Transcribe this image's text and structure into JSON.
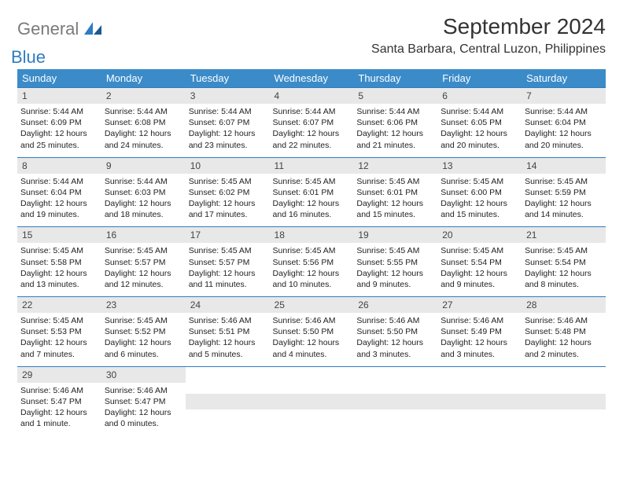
{
  "logo": {
    "text1": "General",
    "text2": "Blue"
  },
  "title": "September 2024",
  "location": "Santa Barbara, Central Luzon, Philippines",
  "colors": {
    "header_bg": "#3b8bc9",
    "header_text": "#ffffff",
    "daynum_bg": "#e8e8e8",
    "border": "#2e7cc2",
    "logo_gray": "#7a7a7a",
    "logo_blue": "#2e7cc2"
  },
  "weekdays": [
    "Sunday",
    "Monday",
    "Tuesday",
    "Wednesday",
    "Thursday",
    "Friday",
    "Saturday"
  ],
  "weeks": [
    [
      {
        "n": "1",
        "sr": "5:44 AM",
        "ss": "6:09 PM",
        "dl": "12 hours and 25 minutes."
      },
      {
        "n": "2",
        "sr": "5:44 AM",
        "ss": "6:08 PM",
        "dl": "12 hours and 24 minutes."
      },
      {
        "n": "3",
        "sr": "5:44 AM",
        "ss": "6:07 PM",
        "dl": "12 hours and 23 minutes."
      },
      {
        "n": "4",
        "sr": "5:44 AM",
        "ss": "6:07 PM",
        "dl": "12 hours and 22 minutes."
      },
      {
        "n": "5",
        "sr": "5:44 AM",
        "ss": "6:06 PM",
        "dl": "12 hours and 21 minutes."
      },
      {
        "n": "6",
        "sr": "5:44 AM",
        "ss": "6:05 PM",
        "dl": "12 hours and 20 minutes."
      },
      {
        "n": "7",
        "sr": "5:44 AM",
        "ss": "6:04 PM",
        "dl": "12 hours and 20 minutes."
      }
    ],
    [
      {
        "n": "8",
        "sr": "5:44 AM",
        "ss": "6:04 PM",
        "dl": "12 hours and 19 minutes."
      },
      {
        "n": "9",
        "sr": "5:44 AM",
        "ss": "6:03 PM",
        "dl": "12 hours and 18 minutes."
      },
      {
        "n": "10",
        "sr": "5:45 AM",
        "ss": "6:02 PM",
        "dl": "12 hours and 17 minutes."
      },
      {
        "n": "11",
        "sr": "5:45 AM",
        "ss": "6:01 PM",
        "dl": "12 hours and 16 minutes."
      },
      {
        "n": "12",
        "sr": "5:45 AM",
        "ss": "6:01 PM",
        "dl": "12 hours and 15 minutes."
      },
      {
        "n": "13",
        "sr": "5:45 AM",
        "ss": "6:00 PM",
        "dl": "12 hours and 15 minutes."
      },
      {
        "n": "14",
        "sr": "5:45 AM",
        "ss": "5:59 PM",
        "dl": "12 hours and 14 minutes."
      }
    ],
    [
      {
        "n": "15",
        "sr": "5:45 AM",
        "ss": "5:58 PM",
        "dl": "12 hours and 13 minutes."
      },
      {
        "n": "16",
        "sr": "5:45 AM",
        "ss": "5:57 PM",
        "dl": "12 hours and 12 minutes."
      },
      {
        "n": "17",
        "sr": "5:45 AM",
        "ss": "5:57 PM",
        "dl": "12 hours and 11 minutes."
      },
      {
        "n": "18",
        "sr": "5:45 AM",
        "ss": "5:56 PM",
        "dl": "12 hours and 10 minutes."
      },
      {
        "n": "19",
        "sr": "5:45 AM",
        "ss": "5:55 PM",
        "dl": "12 hours and 9 minutes."
      },
      {
        "n": "20",
        "sr": "5:45 AM",
        "ss": "5:54 PM",
        "dl": "12 hours and 9 minutes."
      },
      {
        "n": "21",
        "sr": "5:45 AM",
        "ss": "5:54 PM",
        "dl": "12 hours and 8 minutes."
      }
    ],
    [
      {
        "n": "22",
        "sr": "5:45 AM",
        "ss": "5:53 PM",
        "dl": "12 hours and 7 minutes."
      },
      {
        "n": "23",
        "sr": "5:45 AM",
        "ss": "5:52 PM",
        "dl": "12 hours and 6 minutes."
      },
      {
        "n": "24",
        "sr": "5:46 AM",
        "ss": "5:51 PM",
        "dl": "12 hours and 5 minutes."
      },
      {
        "n": "25",
        "sr": "5:46 AM",
        "ss": "5:50 PM",
        "dl": "12 hours and 4 minutes."
      },
      {
        "n": "26",
        "sr": "5:46 AM",
        "ss": "5:50 PM",
        "dl": "12 hours and 3 minutes."
      },
      {
        "n": "27",
        "sr": "5:46 AM",
        "ss": "5:49 PM",
        "dl": "12 hours and 3 minutes."
      },
      {
        "n": "28",
        "sr": "5:46 AM",
        "ss": "5:48 PM",
        "dl": "12 hours and 2 minutes."
      }
    ],
    [
      {
        "n": "29",
        "sr": "5:46 AM",
        "ss": "5:47 PM",
        "dl": "12 hours and 1 minute."
      },
      {
        "n": "30",
        "sr": "5:46 AM",
        "ss": "5:47 PM",
        "dl": "12 hours and 0 minutes."
      },
      null,
      null,
      null,
      null,
      null
    ]
  ],
  "labels": {
    "sunrise": "Sunrise:",
    "sunset": "Sunset:",
    "daylight": "Daylight:"
  }
}
